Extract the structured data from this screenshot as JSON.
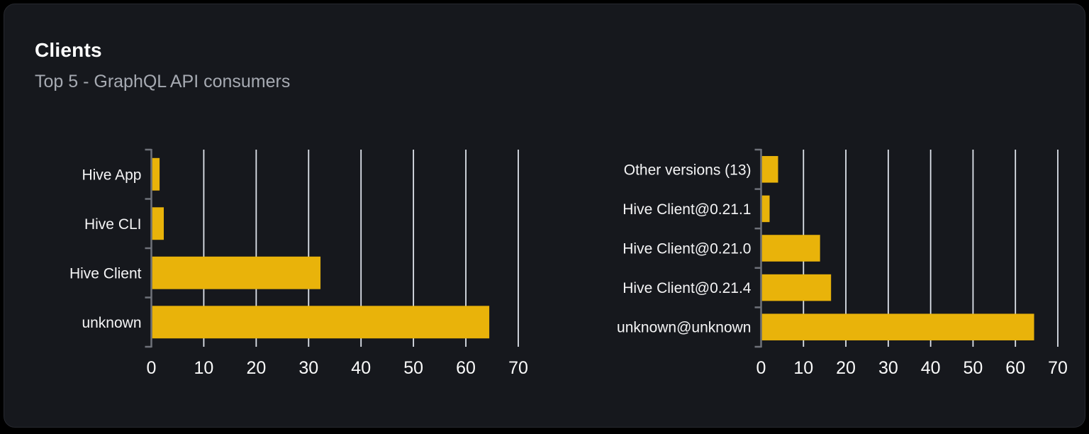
{
  "panel": {
    "title": "Clients",
    "subtitle": "Top 5 - GraphQL API consumers"
  },
  "colors": {
    "page_bg": "#000000",
    "card_bg": "#16181d",
    "card_border": "#26282e",
    "title": "#ffffff",
    "subtitle": "#a6aab2",
    "bar": "#e9b30a",
    "gridline": "#dfe4ec",
    "axis": "#6f727a",
    "category_label": "#f5f5f6",
    "tick_label": "#fafafa"
  },
  "chart_data": [
    {
      "type": "bar",
      "orientation": "horizontal",
      "title": "",
      "categories": [
        "Hive App",
        "Hive CLI",
        "Hive Client",
        "unknown"
      ],
      "values": [
        1.4,
        2.2,
        32.1,
        64.3
      ],
      "xlabel": "",
      "ylabel": "",
      "xlim": [
        0,
        70
      ],
      "xticks": [
        0,
        10,
        20,
        30,
        40,
        50,
        60,
        70
      ],
      "grid": "vertical-only",
      "legend": "none",
      "bar_color": "#e9b30a"
    },
    {
      "type": "bar",
      "orientation": "horizontal",
      "title": "",
      "categories": [
        "Other versions (13)",
        "Hive Client@0.21.1",
        "Hive Client@0.21.0",
        "Hive Client@0.21.4",
        "unknown@unknown"
      ],
      "values": [
        3.8,
        1.8,
        13.7,
        16.3,
        64.2
      ],
      "xlabel": "",
      "ylabel": "",
      "xlim": [
        0,
        70
      ],
      "xticks": [
        0,
        10,
        20,
        30,
        40,
        50,
        60,
        70
      ],
      "grid": "vertical-only",
      "legend": "none",
      "bar_color": "#e9b30a"
    }
  ]
}
